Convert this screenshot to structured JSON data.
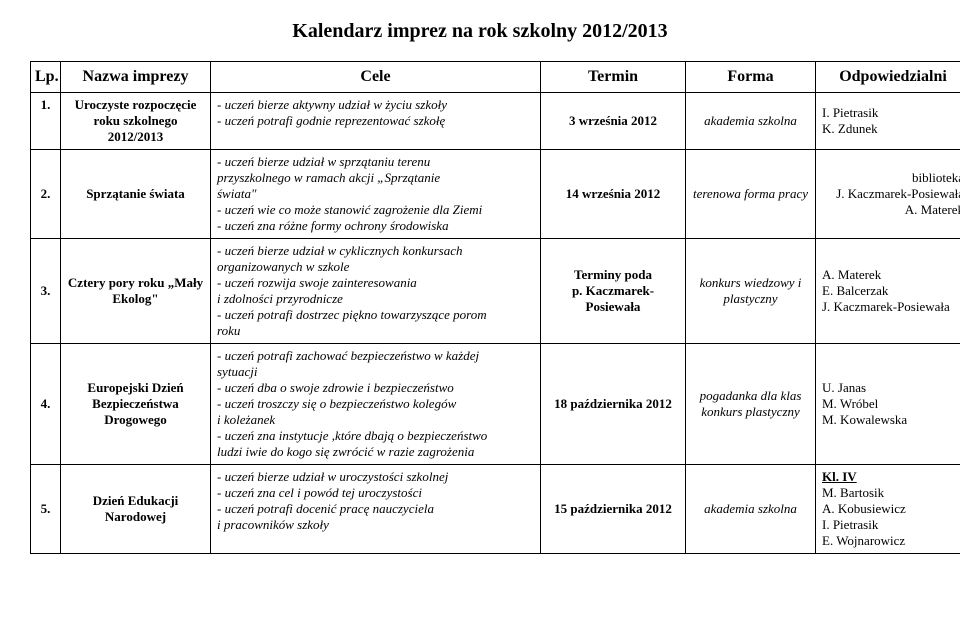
{
  "title": "Kalendarz imprez na rok szkolny 2012/2013",
  "columns": [
    "Lp.",
    "Nazwa imprezy",
    "Cele",
    "Termin",
    "Forma",
    "Odpowiedzialni"
  ],
  "rows": [
    {
      "lp": "1.",
      "name": "Uroczyste rozpoczęcie roku szkolnego 2012/2013",
      "cele": "- uczeń bierze aktywny udział w życiu szkoły\n- uczeń potrafi godnie reprezentować szkołę",
      "termin": "3 września 2012",
      "forma": "akademia szkolna",
      "odp": "I. Pietrasik\nK. Zdunek"
    },
    {
      "lp": "2.",
      "name": "Sprzątanie świata",
      "cele": "- uczeń bierze udział w sprzątaniu terenu\n  przyszkolnego w ramach akcji „Sprzątanie\n  świata\"\n- uczeń wie co może stanowić zagrożenie dla Ziemi\n- uczeń zna różne formy ochrony środowiska",
      "termin": "14 września 2012",
      "forma": "terenowa forma pracy",
      "odp": "biblioteka\nJ. Kaczmarek-Posiewała\nA. Materek"
    },
    {
      "lp": "3.",
      "name": "Cztery pory roku „Mały Ekolog\"",
      "cele": "- uczeń bierze udział w cyklicznych konkursach\n  organizowanych w szkole\n- uczeń rozwija swoje zainteresowania\n  i zdolności przyrodnicze\n- uczeń potrafi dostrzec piękno towarzyszące porom\n  roku",
      "termin": "Terminy poda\np. Kaczmarek-\nPosiewała",
      "forma": "konkurs wiedzowy i plastyczny",
      "odp": "A. Materek\nE. Balcerzak\nJ. Kaczmarek-Posiewała"
    },
    {
      "lp": "4.",
      "name": "Europejski Dzień Bezpieczeństwa Drogowego",
      "cele": "- uczeń potrafi zachować bezpieczeństwo w każdej\n  sytuacji\n- uczeń dba o swoje zdrowie i bezpieczeństwo\n- uczeń troszczy się o bezpieczeństwo kolegów\n  i koleżanek\n- uczeń zna instytucje ,które dbają o bezpieczeństwo\n  ludzi iwie do kogo się zwrócić w razie zagrożenia",
      "termin": "18 października 2012",
      "forma": "pogadanka dla klas konkurs plastyczny",
      "odp": "U. Janas\nM. Wróbel\nM. Kowalewska"
    },
    {
      "lp": "5.",
      "name": "Dzień Edukacji Narodowej",
      "cele": "- uczeń bierze udział w uroczystości szkolnej\n- uczeń zna cel i powód tej uroczystości\n- uczeń potrafi docenić pracę nauczyciela\n  i pracowników szkoły",
      "termin": "15 października  2012",
      "forma": "akademia szkolna",
      "odp_prefix": "Kl. IV",
      "odp": "M. Bartosik\nA. Kobusiewicz\nI. Pietrasik\nE. Wojnarowicz"
    }
  ]
}
